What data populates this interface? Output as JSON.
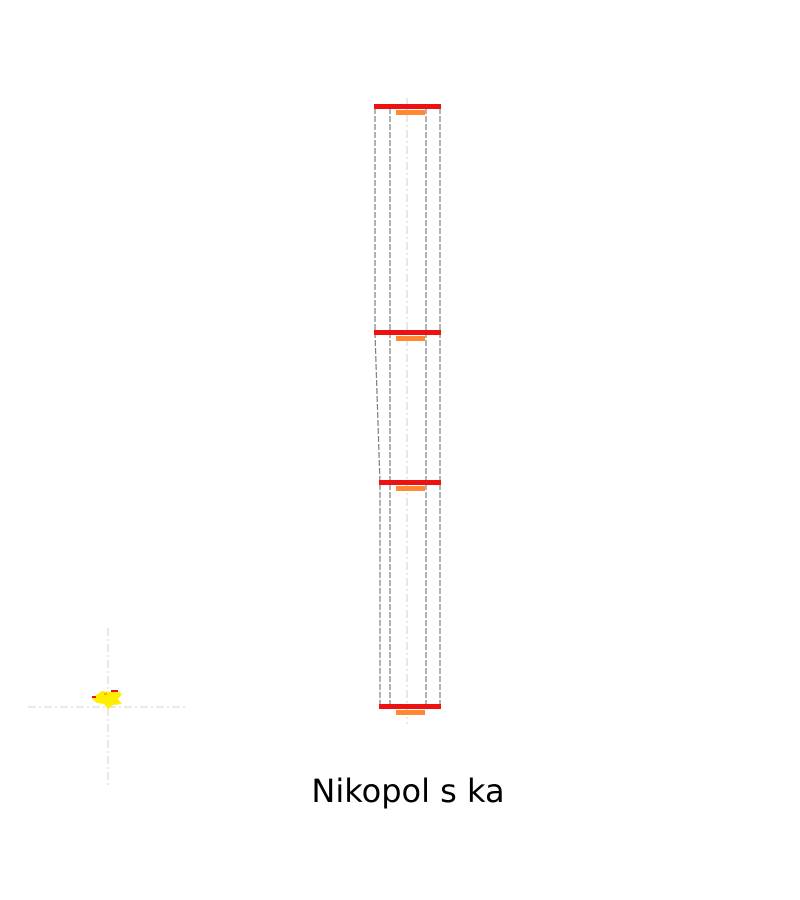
{
  "caption": "Nikopol s ka",
  "colors": {
    "background": "#ffffff",
    "outline": "#7f7f7f",
    "centerline": "#d0d0d0",
    "level_bar": "#ee1111",
    "level_tab": "#ff8833",
    "marker_yellow": "#ffee00",
    "marker_red": "#ee1111"
  },
  "diagram": {
    "levels": 4,
    "marker_icon": "yellow-bird-marker-icon"
  }
}
